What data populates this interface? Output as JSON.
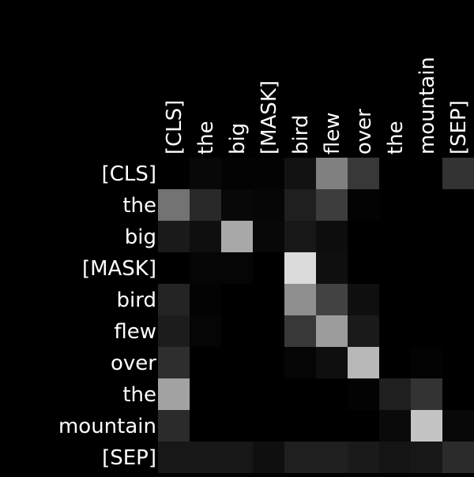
{
  "chart_data": {
    "type": "heatmap",
    "x_tokens": [
      "[CLS]",
      "the",
      "big",
      "[MASK]",
      "bird",
      "flew",
      "over",
      "the",
      "mountain",
      "[SEP]"
    ],
    "y_tokens": [
      "[CLS]",
      "the",
      "big",
      "[MASK]",
      "bird",
      "flew",
      "over",
      "the",
      "mountain",
      "[SEP]"
    ],
    "value_range": [
      0,
      1
    ],
    "colormap": "grayscale (black = 0, white = 1)",
    "grid": false,
    "values": [
      [
        0.0,
        0.03,
        0.01,
        0.01,
        0.07,
        0.5,
        0.22,
        0.0,
        0.0,
        0.2
      ],
      [
        0.45,
        0.16,
        0.03,
        0.02,
        0.12,
        0.24,
        0.01,
        0.0,
        0.0,
        0.0
      ],
      [
        0.1,
        0.06,
        0.66,
        0.03,
        0.09,
        0.05,
        0.0,
        0.0,
        0.0,
        0.0
      ],
      [
        0.0,
        0.02,
        0.02,
        0.0,
        0.86,
        0.06,
        0.0,
        0.0,
        0.0,
        0.0
      ],
      [
        0.14,
        0.01,
        0.0,
        0.0,
        0.56,
        0.26,
        0.06,
        0.0,
        0.0,
        0.0
      ],
      [
        0.11,
        0.02,
        0.0,
        0.0,
        0.22,
        0.61,
        0.1,
        0.0,
        0.0,
        0.0
      ],
      [
        0.18,
        0.0,
        0.0,
        0.0,
        0.02,
        0.06,
        0.72,
        0.0,
        0.01,
        0.0
      ],
      [
        0.64,
        0.0,
        0.0,
        0.0,
        0.0,
        0.0,
        0.01,
        0.12,
        0.2,
        0.0
      ],
      [
        0.17,
        0.0,
        0.0,
        0.0,
        0.0,
        0.0,
        0.0,
        0.04,
        0.77,
        0.03
      ],
      [
        0.09,
        0.09,
        0.09,
        0.06,
        0.12,
        0.12,
        0.1,
        0.08,
        0.09,
        0.17
      ]
    ]
  }
}
